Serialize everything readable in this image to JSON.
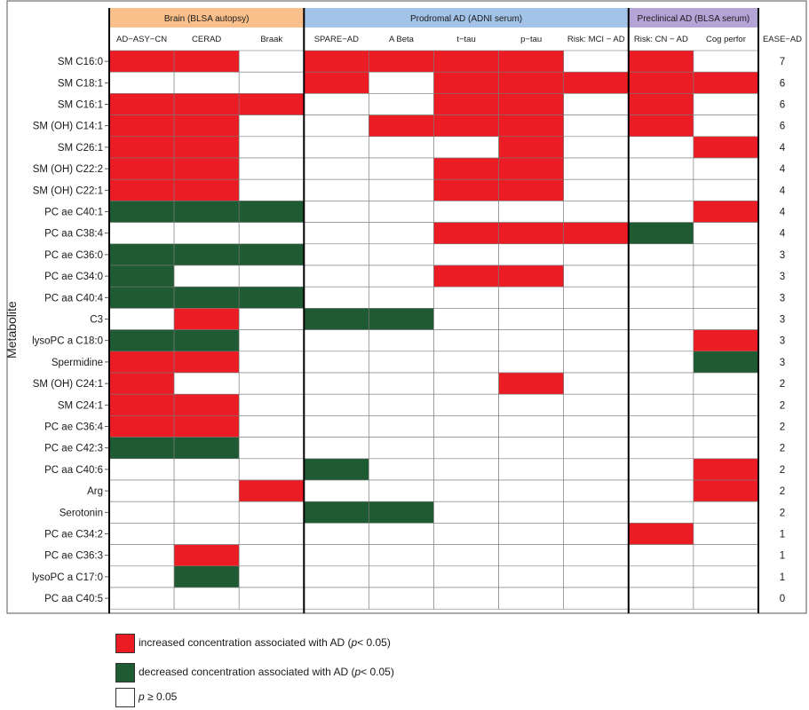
{
  "chart_data": {
    "type": "heatmap",
    "ylabel": "Metabolite",
    "groups": [
      {
        "name": "Brain (BLSA autopsy)",
        "color": "#f9c08c",
        "span": 3
      },
      {
        "name": "Prodromal AD (ADNI serum)",
        "color": "#a4c3e8",
        "span": 5
      },
      {
        "name": "Preclinical AD (BLSA serum)",
        "color": "#b4a4d6",
        "span": 2
      }
    ],
    "columns": [
      "AD−ASY−CN",
      "CERAD",
      "Braak",
      "SPARE−AD",
      "A Beta",
      "t−tau",
      "p−tau",
      "Risk: MCI − AD",
      "Risk: CN − AD",
      "Cog perfor"
    ],
    "score_header": "EASE−AD",
    "rows": [
      "SM C16:0",
      "SM C18:1",
      "SM C16:1",
      "SM (OH) C14:1",
      "SM C26:1",
      "SM (OH) C22:2",
      "SM (OH) C22:1",
      "PC ae C40:1",
      "PC aa C38:4",
      "PC ae C36:0",
      "PC ae C34:0",
      "PC aa C40:4",
      "C3",
      "lysoPC a C18:0",
      "Spermidine",
      "SM (OH) C24:1",
      "SM C24:1",
      "PC ae C36:4",
      "PC ae C42:3",
      "PC aa C40:6",
      "Arg",
      "Serotonin",
      "PC ae C34:2",
      "PC ae C36:3",
      "lysoPC a C17:0",
      "PC aa C40:5"
    ],
    "values": [
      [
        1,
        1,
        0,
        1,
        1,
        1,
        1,
        0,
        1,
        0
      ],
      [
        0,
        0,
        0,
        1,
        0,
        1,
        1,
        1,
        1,
        1
      ],
      [
        1,
        1,
        1,
        0,
        0,
        1,
        1,
        0,
        1,
        0
      ],
      [
        1,
        1,
        0,
        0,
        1,
        1,
        1,
        0,
        1,
        0
      ],
      [
        1,
        1,
        0,
        0,
        0,
        0,
        1,
        0,
        0,
        1
      ],
      [
        1,
        1,
        0,
        0,
        0,
        1,
        1,
        0,
        0,
        0
      ],
      [
        1,
        1,
        0,
        0,
        0,
        1,
        1,
        0,
        0,
        0
      ],
      [
        -1,
        -1,
        -1,
        0,
        0,
        0,
        0,
        0,
        0,
        1
      ],
      [
        0,
        0,
        0,
        0,
        0,
        1,
        1,
        1,
        -1,
        0
      ],
      [
        -1,
        -1,
        -1,
        0,
        0,
        0,
        0,
        0,
        0,
        0
      ],
      [
        -1,
        0,
        0,
        0,
        0,
        1,
        1,
        0,
        0,
        0
      ],
      [
        -1,
        -1,
        -1,
        0,
        0,
        0,
        0,
        0,
        0,
        0
      ],
      [
        0,
        1,
        0,
        -1,
        -1,
        0,
        0,
        0,
        0,
        0
      ],
      [
        -1,
        -1,
        0,
        0,
        0,
        0,
        0,
        0,
        0,
        1
      ],
      [
        1,
        1,
        0,
        0,
        0,
        0,
        0,
        0,
        0,
        -1
      ],
      [
        1,
        0,
        0,
        0,
        0,
        0,
        1,
        0,
        0,
        0
      ],
      [
        1,
        1,
        0,
        0,
        0,
        0,
        0,
        0,
        0,
        0
      ],
      [
        1,
        1,
        0,
        0,
        0,
        0,
        0,
        0,
        0,
        0
      ],
      [
        -1,
        -1,
        0,
        0,
        0,
        0,
        0,
        0,
        0,
        0
      ],
      [
        0,
        0,
        0,
        -1,
        0,
        0,
        0,
        0,
        0,
        1
      ],
      [
        0,
        0,
        1,
        0,
        0,
        0,
        0,
        0,
        0,
        1
      ],
      [
        0,
        0,
        0,
        -1,
        -1,
        0,
        0,
        0,
        0,
        0
      ],
      [
        0,
        0,
        0,
        0,
        0,
        0,
        0,
        0,
        1,
        0
      ],
      [
        0,
        1,
        0,
        0,
        0,
        0,
        0,
        0,
        0,
        0
      ],
      [
        0,
        -1,
        0,
        0,
        0,
        0,
        0,
        0,
        0,
        0
      ],
      [
        0,
        0,
        0,
        0,
        0,
        0,
        0,
        0,
        0,
        0
      ]
    ],
    "scores": [
      7,
      6,
      6,
      6,
      4,
      4,
      4,
      4,
      4,
      3,
      3,
      3,
      3,
      3,
      3,
      2,
      2,
      2,
      2,
      2,
      2,
      2,
      1,
      1,
      1,
      0
    ],
    "colors": {
      "increased": "#ec1c24",
      "decreased": "#1e5b32",
      "none": "#ffffff"
    }
  },
  "legend": {
    "increased_prefix": "increased concentration associated with AD (",
    "decreased_prefix": "decreased concentration associated with AD (",
    "p_symbol": "p",
    "sig_suffix": "< 0.05)",
    "nonsig_suffix": " ≥ 0.05"
  }
}
